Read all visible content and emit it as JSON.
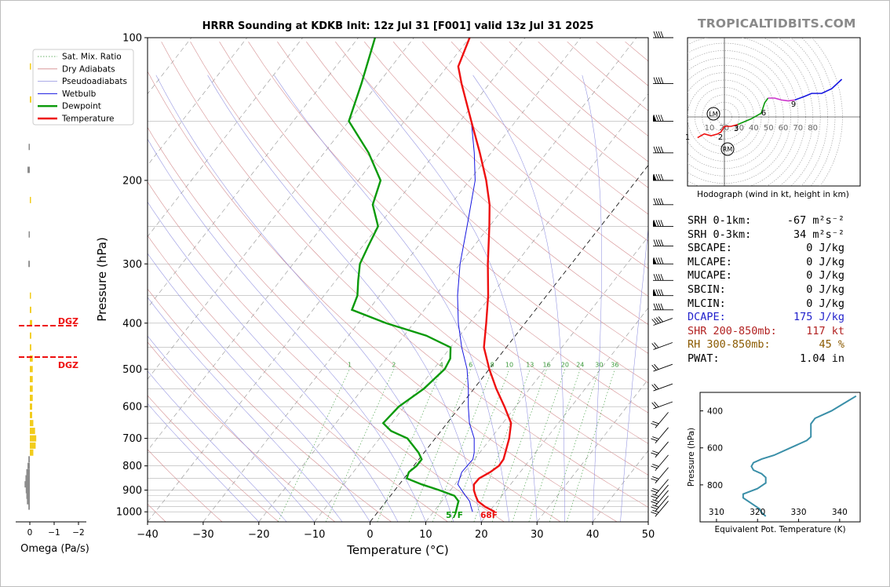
{
  "site": "TROPICALTIDBITS.COM",
  "chart_data": {
    "type": "skew-t sounding",
    "title": "HRRR Sounding at KDKB Init: 12z Jul 31 [F001] valid 13z Jul 31 2025",
    "xlabel": "Temperature (°C)",
    "ylabel": "Pressure (hPa)",
    "xlim": [
      -40,
      50
    ],
    "ylim": [
      1050,
      100
    ],
    "x_ticks": [
      "−40",
      "−30",
      "−20",
      "−10",
      "0",
      "10",
      "20",
      "30",
      "40",
      "50"
    ],
    "y_ticks": [
      "100",
      "200",
      "300",
      "400",
      "500",
      "600",
      "700",
      "800",
      "900",
      "1000"
    ],
    "legend": [
      "Sat. Mix. Ratio",
      "Dry Adiabats",
      "Pseudoadiabats",
      "Wetbulb",
      "Dewpoint",
      "Temperature"
    ],
    "mixing_ratio_labels": [
      "1",
      "2",
      "4",
      "6",
      "8",
      "10",
      "13",
      "16",
      "20",
      "24",
      "30",
      "36"
    ],
    "surface_temp_label": "68F",
    "surface_dew_label": "57F",
    "temperature": [
      [
        1000,
        21
      ],
      [
        975,
        18.5
      ],
      [
        950,
        16.5
      ],
      [
        925,
        15.3
      ],
      [
        900,
        14.2
      ],
      [
        875,
        13.4
      ],
      [
        850,
        13.5
      ],
      [
        825,
        14.6
      ],
      [
        800,
        15.3
      ],
      [
        775,
        15.2
      ],
      [
        750,
        14.6
      ],
      [
        700,
        13.3
      ],
      [
        650,
        11.5
      ],
      [
        600,
        8
      ],
      [
        550,
        4
      ],
      [
        500,
        0
      ],
      [
        450,
        -4
      ],
      [
        400,
        -7
      ],
      [
        350,
        -10.5
      ],
      [
        300,
        -15
      ],
      [
        250,
        -20
      ],
      [
        225,
        -23
      ],
      [
        200,
        -27
      ],
      [
        175,
        -32
      ],
      [
        150,
        -38
      ],
      [
        125,
        -45
      ],
      [
        115,
        -48
      ],
      [
        100,
        -50
      ]
    ],
    "dewpoint": [
      [
        1000,
        14
      ],
      [
        975,
        13.5
      ],
      [
        950,
        13
      ],
      [
        925,
        11.5
      ],
      [
        900,
        8
      ],
      [
        875,
        4
      ],
      [
        850,
        0.5
      ],
      [
        825,
        0
      ],
      [
        800,
        0.5
      ],
      [
        775,
        0.5
      ],
      [
        750,
        -1
      ],
      [
        700,
        -5
      ],
      [
        675,
        -9
      ],
      [
        650,
        -11.5
      ],
      [
        600,
        -11
      ],
      [
        550,
        -9
      ],
      [
        500,
        -8
      ],
      [
        475,
        -8.5
      ],
      [
        450,
        -10
      ],
      [
        425,
        -16
      ],
      [
        400,
        -25
      ],
      [
        375,
        -33
      ],
      [
        350,
        -34
      ],
      [
        325,
        -36
      ],
      [
        300,
        -38
      ],
      [
        275,
        -39
      ],
      [
        250,
        -40
      ],
      [
        225,
        -44
      ],
      [
        200,
        -46
      ],
      [
        175,
        -52
      ],
      [
        150,
        -60
      ],
      [
        125,
        -63
      ],
      [
        100,
        -67
      ]
    ],
    "wetbulb": [
      [
        1000,
        17
      ],
      [
        975,
        16
      ],
      [
        950,
        15
      ],
      [
        925,
        13.5
      ],
      [
        900,
        12
      ],
      [
        875,
        10.5
      ],
      [
        850,
        10
      ],
      [
        825,
        9.5
      ],
      [
        800,
        9.6
      ],
      [
        775,
        9.7
      ],
      [
        750,
        9
      ],
      [
        700,
        7
      ],
      [
        650,
        4
      ],
      [
        600,
        1.5
      ],
      [
        550,
        -1
      ],
      [
        500,
        -4
      ],
      [
        450,
        -8
      ],
      [
        400,
        -12
      ],
      [
        350,
        -16
      ],
      [
        300,
        -20
      ],
      [
        250,
        -24
      ],
      [
        200,
        -29
      ],
      [
        175,
        -33
      ],
      [
        150,
        -38
      ],
      [
        125,
        -45
      ],
      [
        115,
        -48
      ],
      [
        100,
        -50
      ]
    ],
    "dgz_top_label": "DGZ",
    "dgz_bottom_label": "DGZ",
    "omega": {
      "xlabel": "Omega (Pa/s)",
      "ticks": [
        "0",
        "−1",
        "−2"
      ],
      "bars": [
        [
          975,
          0.05
        ],
        [
          950,
          0.1
        ],
        [
          925,
          0.12
        ],
        [
          900,
          0.14
        ],
        [
          875,
          0.18
        ],
        [
          850,
          0.15
        ],
        [
          825,
          0.12
        ],
        [
          800,
          0.08
        ],
        [
          775,
          0.05
        ],
        [
          750,
          -0.12
        ],
        [
          725,
          -0.2
        ],
        [
          700,
          -0.22
        ],
        [
          675,
          -0.18
        ],
        [
          650,
          -0.12
        ],
        [
          625,
          -0.08
        ],
        [
          600,
          -0.08
        ],
        [
          575,
          -0.1
        ],
        [
          550,
          -0.1
        ],
        [
          525,
          -0.1
        ],
        [
          500,
          -0.1
        ],
        [
          475,
          -0.1
        ],
        [
          450,
          -0.05
        ],
        [
          425,
          -0.05
        ],
        [
          400,
          -0.08
        ],
        [
          375,
          -0.05
        ],
        [
          350,
          -0.03
        ],
        [
          300,
          0.05
        ],
        [
          260,
          0.03
        ],
        [
          220,
          -0.02
        ],
        [
          190,
          0.08
        ],
        [
          170,
          0.03
        ],
        [
          135,
          -0.05
        ],
        [
          115,
          -0.03
        ]
      ]
    },
    "hodograph": {
      "caption": "Hodograph (wind in kt, height in km)",
      "ring_labels": [
        "10",
        "20",
        "30",
        "40",
        "50",
        "60",
        "70",
        "80"
      ],
      "height_labels": [
        "1",
        "2",
        "3",
        "6",
        "9"
      ],
      "storm_motion_labels": [
        "LM",
        "RM"
      ],
      "trace": [
        [
          -40,
          -22
        ],
        [
          -30,
          -18
        ],
        [
          -20,
          -20
        ],
        [
          -10,
          -18
        ],
        [
          -5,
          -16
        ],
        [
          0,
          -10
        ],
        [
          10,
          -10
        ],
        [
          20,
          -8
        ],
        [
          30,
          -5
        ],
        [
          40,
          -2
        ],
        [
          50,
          2
        ],
        [
          55,
          4
        ],
        [
          60,
          15
        ],
        [
          65,
          20
        ],
        [
          75,
          20
        ],
        [
          85,
          18
        ],
        [
          95,
          17
        ],
        [
          105,
          18
        ],
        [
          120,
          22
        ],
        [
          130,
          25
        ],
        [
          145,
          25
        ],
        [
          160,
          30
        ],
        [
          175,
          40
        ]
      ]
    },
    "stats": [
      {
        "label": "SRH 0-1km:",
        "value": "-67 m²s⁻²",
        "color": "#000000"
      },
      {
        "label": "SRH 0-3km:",
        "value": "34 m²s⁻²",
        "color": "#000000"
      },
      {
        "label": "SBCAPE:",
        "value": "0 J/kg",
        "color": "#000000"
      },
      {
        "label": "MLCAPE:",
        "value": "0 J/kg",
        "color": "#000000"
      },
      {
        "label": "MUCAPE:",
        "value": "0 J/kg",
        "color": "#000000"
      },
      {
        "label": "SBCIN:",
        "value": "0 J/kg",
        "color": "#000000"
      },
      {
        "label": "MLCIN:",
        "value": "0 J/kg",
        "color": "#000000"
      },
      {
        "label": "DCAPE:",
        "value": "175 J/kg",
        "color": "#2222cc"
      },
      {
        "label": "SHR 200-850mb:",
        "value": "117 kt",
        "color": "#b22222"
      },
      {
        "label": "RH 300-850mb:",
        "value": "45 %",
        "color": "#8b5a00"
      },
      {
        "label": "PWAT:",
        "value": "1.04 in",
        "color": "#000000"
      }
    ],
    "theta_e": {
      "xlabel": "Equivalent Pot. Temperature (K)",
      "ylabel": "Pressure (hPa)",
      "x_ticks": [
        "310",
        "320",
        "330",
        "340"
      ],
      "y_ticks": [
        "400",
        "600",
        "800"
      ],
      "xlim": [
        306,
        345
      ],
      "ylim": [
        1000,
        300
      ],
      "profile": [
        [
          970,
          322
        ],
        [
          950,
          321
        ],
        [
          930,
          320.5
        ],
        [
          900,
          318.5
        ],
        [
          870,
          316.5
        ],
        [
          850,
          316.5
        ],
        [
          820,
          320
        ],
        [
          790,
          322
        ],
        [
          760,
          322
        ],
        [
          740,
          321
        ],
        [
          720,
          319
        ],
        [
          700,
          318.5
        ],
        [
          680,
          319
        ],
        [
          660,
          321
        ],
        [
          640,
          324
        ],
        [
          600,
          328
        ],
        [
          560,
          332
        ],
        [
          540,
          333
        ],
        [
          500,
          333
        ],
        [
          470,
          333
        ],
        [
          440,
          334
        ],
        [
          420,
          336
        ],
        [
          400,
          338
        ],
        [
          360,
          341
        ],
        [
          320,
          344
        ]
      ]
    }
  }
}
